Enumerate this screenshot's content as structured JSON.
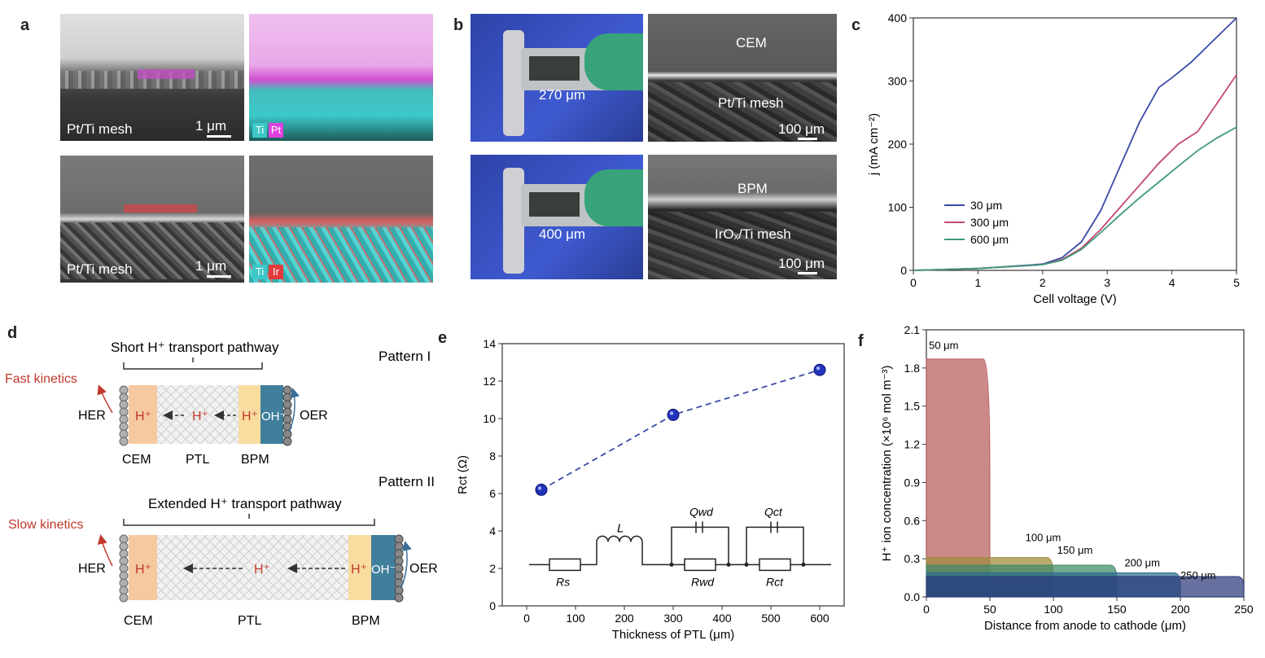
{
  "panels": {
    "a": {
      "letter": "a",
      "top_left_label": "Pt/Ti mesh",
      "top_left_scale": "1 μm",
      "top_right_legend": [
        "Ti",
        "Pt"
      ],
      "bottom_left_label": "Pt/Ti mesh",
      "bottom_left_scale": "1 μm",
      "bottom_right_legend": [
        "Ti",
        "Ir"
      ]
    },
    "b": {
      "letter": "b",
      "top_thickness": "270 μm",
      "top_membrane": "CEM",
      "top_mesh": "Pt/Ti mesh",
      "top_scale": "100 μm",
      "bottom_thickness": "400 μm",
      "bottom_membrane": "BPM",
      "bottom_mesh": "IrOₓ/Ti mesh",
      "bottom_scale": "100 μm"
    },
    "d": {
      "letter": "d",
      "pattern1": "Pattern I",
      "pattern2": "Pattern II",
      "short_path": "Short H⁺ transport pathway",
      "extended_path": "Extended H⁺ transport pathway",
      "fast": "Fast kinetics",
      "slow": "Slow kinetics",
      "her": "HER",
      "oer": "OER",
      "hplus": "H⁺",
      "oh": "OH⁻",
      "cem": "CEM",
      "ptl": "PTL",
      "bpm": "BPM"
    },
    "e_letter": "e",
    "c_letter": "c",
    "f_letter": "f"
  },
  "colors": {
    "cem": "#f6c9a1",
    "bpm_h": "#f8dca0",
    "bpm_oh": "#3f7f9c",
    "pt_magenta": "#e040e0",
    "ti_cyan": "#3cc8c8",
    "ir_red": "#e33b3b",
    "red_text": "#c0392b"
  },
  "chart_data": [
    {
      "id": "c",
      "type": "line",
      "xlabel": "Cell voltage (V)",
      "ylabel": "j (mA cm⁻²)",
      "xlim": [
        0,
        5
      ],
      "ylim": [
        0,
        400
      ],
      "xticks": [
        "0",
        "1",
        "2",
        "3",
        "4",
        "5"
      ],
      "yticks": [
        "0",
        "100",
        "200",
        "300",
        "400"
      ],
      "legend_placement": "center-left",
      "series": [
        {
          "name": "30 μm",
          "color": "#3b4aa8",
          "x": [
            0,
            1,
            2,
            2.3,
            2.6,
            2.9,
            3.2,
            3.5,
            3.8,
            4.0,
            4.3,
            4.6,
            5.0
          ],
          "y": [
            0,
            3,
            10,
            20,
            45,
            95,
            165,
            235,
            290,
            305,
            330,
            360,
            400
          ]
        },
        {
          "name": "300 μm",
          "color": "#c44a6a",
          "x": [
            0,
            1,
            2,
            2.3,
            2.6,
            2.9,
            3.2,
            3.5,
            3.8,
            4.1,
            4.4,
            4.7,
            5.0
          ],
          "y": [
            0,
            3,
            9,
            17,
            35,
            65,
            100,
            135,
            170,
            200,
            220,
            265,
            310
          ]
        },
        {
          "name": "600 μm",
          "color": "#3f9a7a",
          "x": [
            0,
            1,
            2,
            2.3,
            2.6,
            2.9,
            3.2,
            3.5,
            3.8,
            4.1,
            4.4,
            4.7,
            5.0
          ],
          "y": [
            0,
            3,
            9,
            16,
            33,
            60,
            88,
            115,
            140,
            165,
            190,
            210,
            227
          ]
        }
      ]
    },
    {
      "id": "e",
      "type": "scatter",
      "xlabel": "Thickness of PTL (μm)",
      "ylabel": "Rct (Ω)",
      "xlim": [
        -50,
        650
      ],
      "ylim": [
        0,
        14
      ],
      "xticks": [
        "0",
        "100",
        "200",
        "300",
        "400",
        "500",
        "600"
      ],
      "yticks": [
        "0",
        "2",
        "4",
        "6",
        "8",
        "10",
        "12",
        "14"
      ],
      "x": [
        30,
        300,
        600
      ],
      "y": [
        6.2,
        10.2,
        12.6
      ],
      "circuit_labels": {
        "rs": "Rs",
        "l": "L",
        "qwd": "Qwd",
        "rwd": "Rwd",
        "qct": "Qct",
        "rct": "Rct"
      }
    },
    {
      "id": "f",
      "type": "area",
      "xlabel": "Distance from anode to cathode (μm)",
      "ylabel": "H⁺ ion concentration (×10⁶ mol m⁻³)",
      "xlim": [
        0,
        250
      ],
      "ylim": [
        0,
        2.1
      ],
      "xticks": [
        "0",
        "50",
        "100",
        "150",
        "200",
        "250"
      ],
      "yticks": [
        "0.0",
        "0.3",
        "0.6",
        "0.9",
        "1.2",
        "1.5",
        "1.8",
        "2.1"
      ],
      "series": [
        {
          "name": "50 μm",
          "color": "#b85b5b",
          "x_end": 50,
          "y": 1.87,
          "label_x": 2,
          "label_y": 1.95
        },
        {
          "name": "100 μm",
          "color": "#a08a3a",
          "x_end": 100,
          "y": 0.31,
          "label_x": 78,
          "label_y": 0.44
        },
        {
          "name": "150 μm",
          "color": "#3f8a6a",
          "x_end": 150,
          "y": 0.25,
          "label_x": 103,
          "label_y": 0.34
        },
        {
          "name": "200 μm",
          "color": "#2d6e8e",
          "x_end": 200,
          "y": 0.19,
          "label_x": 156,
          "label_y": 0.24
        },
        {
          "name": "250 μm",
          "color": "#2b3a7a",
          "x_end": 250,
          "y": 0.16,
          "label_x": 200,
          "label_y": 0.14
        }
      ]
    }
  ]
}
